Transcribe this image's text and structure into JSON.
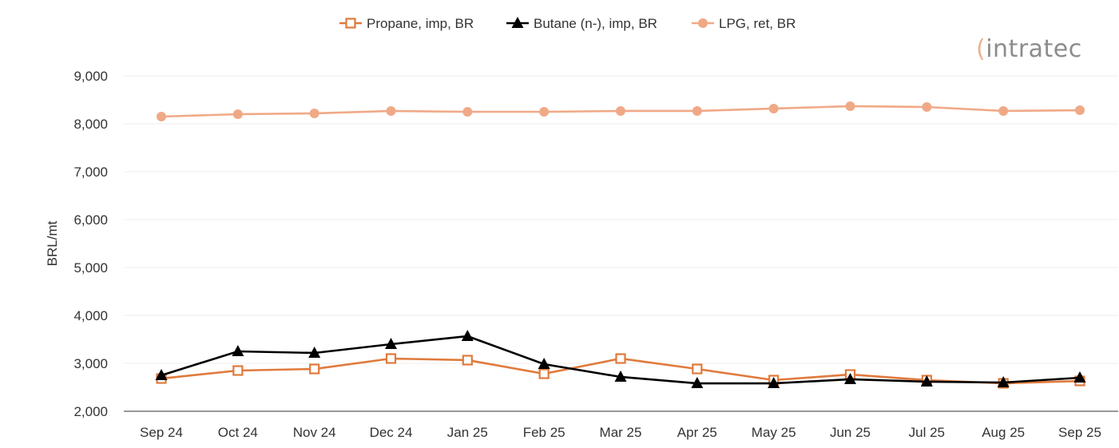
{
  "logo": "intratec",
  "chart_data": {
    "type": "line",
    "ylabel": "BRL/mt",
    "xlabel": "",
    "ylim": [
      2000,
      9000
    ],
    "yticks": [
      2000,
      3000,
      4000,
      5000,
      6000,
      7000,
      8000,
      9000
    ],
    "ytick_labels": [
      "2,000",
      "3,000",
      "4,000",
      "5,000",
      "6,000",
      "7,000",
      "8,000",
      "9,000"
    ],
    "grid": true,
    "legend_position": "top",
    "categories": [
      "Sep 24",
      "Oct 24",
      "Nov 24",
      "Dec 24",
      "Jan 25",
      "Feb 25",
      "Mar 25",
      "Apr 25",
      "May 25",
      "Jun 25",
      "Jul 25",
      "Aug 25",
      "Sep 25"
    ],
    "series": [
      {
        "name": "Propane, imp, BR",
        "color": "#E07A3C",
        "marker": "open-square",
        "values": [
          2683,
          2850,
          2883,
          3100,
          3067,
          2783,
          3100,
          2883,
          2650,
          2767,
          2650,
          2583,
          2633
        ]
      },
      {
        "name": "Butane (n-), imp, BR",
        "color": "#000000",
        "marker": "triangle",
        "values": [
          2750,
          3250,
          3217,
          3400,
          3567,
          2983,
          2717,
          2583,
          2583,
          2667,
          2617,
          2600,
          2700
        ]
      },
      {
        "name": "LPG, ret, BR",
        "color": "#F0A987",
        "marker": "circle",
        "values": [
          8150,
          8200,
          8217,
          8267,
          8250,
          8250,
          8267,
          8267,
          8317,
          8367,
          8350,
          8267,
          8283
        ]
      }
    ]
  }
}
